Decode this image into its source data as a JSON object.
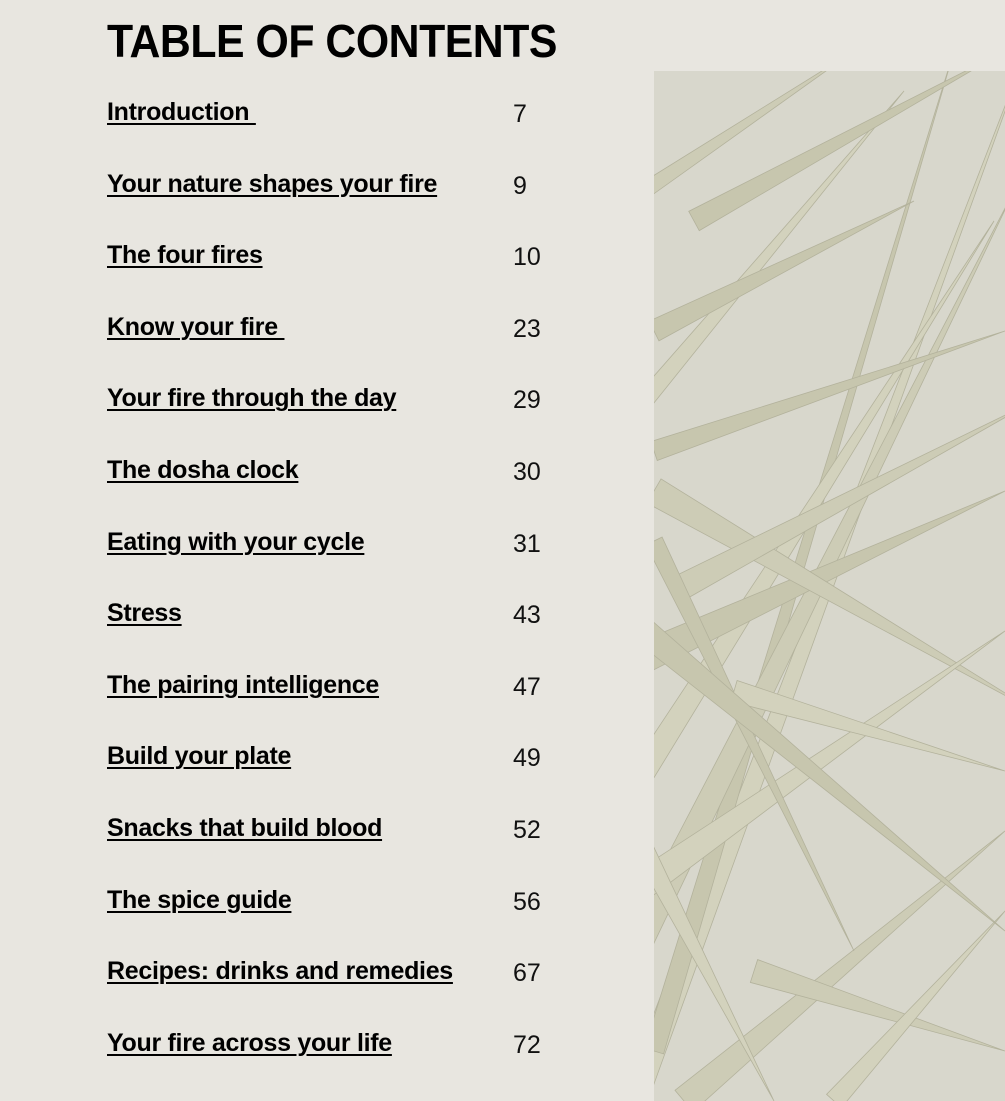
{
  "title": "TABLE OF CONTENTS",
  "entries": [
    {
      "label": "Introduction ",
      "page": "7"
    },
    {
      "label": "Your nature shapes your fire",
      "page": "9"
    },
    {
      "label": "The four fires",
      "page": "10"
    },
    {
      "label": "Know your fire ",
      "page": "23"
    },
    {
      "label": "Your fire through the day",
      "page": "29"
    },
    {
      "label": "The dosha clock",
      "page": "30"
    },
    {
      "label": "Eating with your cycle",
      "page": "31"
    },
    {
      "label": "Stress",
      "page": "43"
    },
    {
      "label": "The pairing intelligence",
      "page": "47"
    },
    {
      "label": "Build your plate",
      "page": "49"
    },
    {
      "label": "Snacks that build blood",
      "page": "52"
    },
    {
      "label": "The spice guide",
      "page": "56"
    },
    {
      "label": "Recipes: drinks and remedies",
      "page": "67"
    },
    {
      "label": "Your fire across your life",
      "page": "72"
    }
  ],
  "image": {
    "subject": "dried palm leaves photo",
    "colors": {
      "background": "#d8d7cc",
      "leaf": "#c7c6ae",
      "leaf_light": "#d3d2bd",
      "shadow": "#b3b29c"
    }
  }
}
